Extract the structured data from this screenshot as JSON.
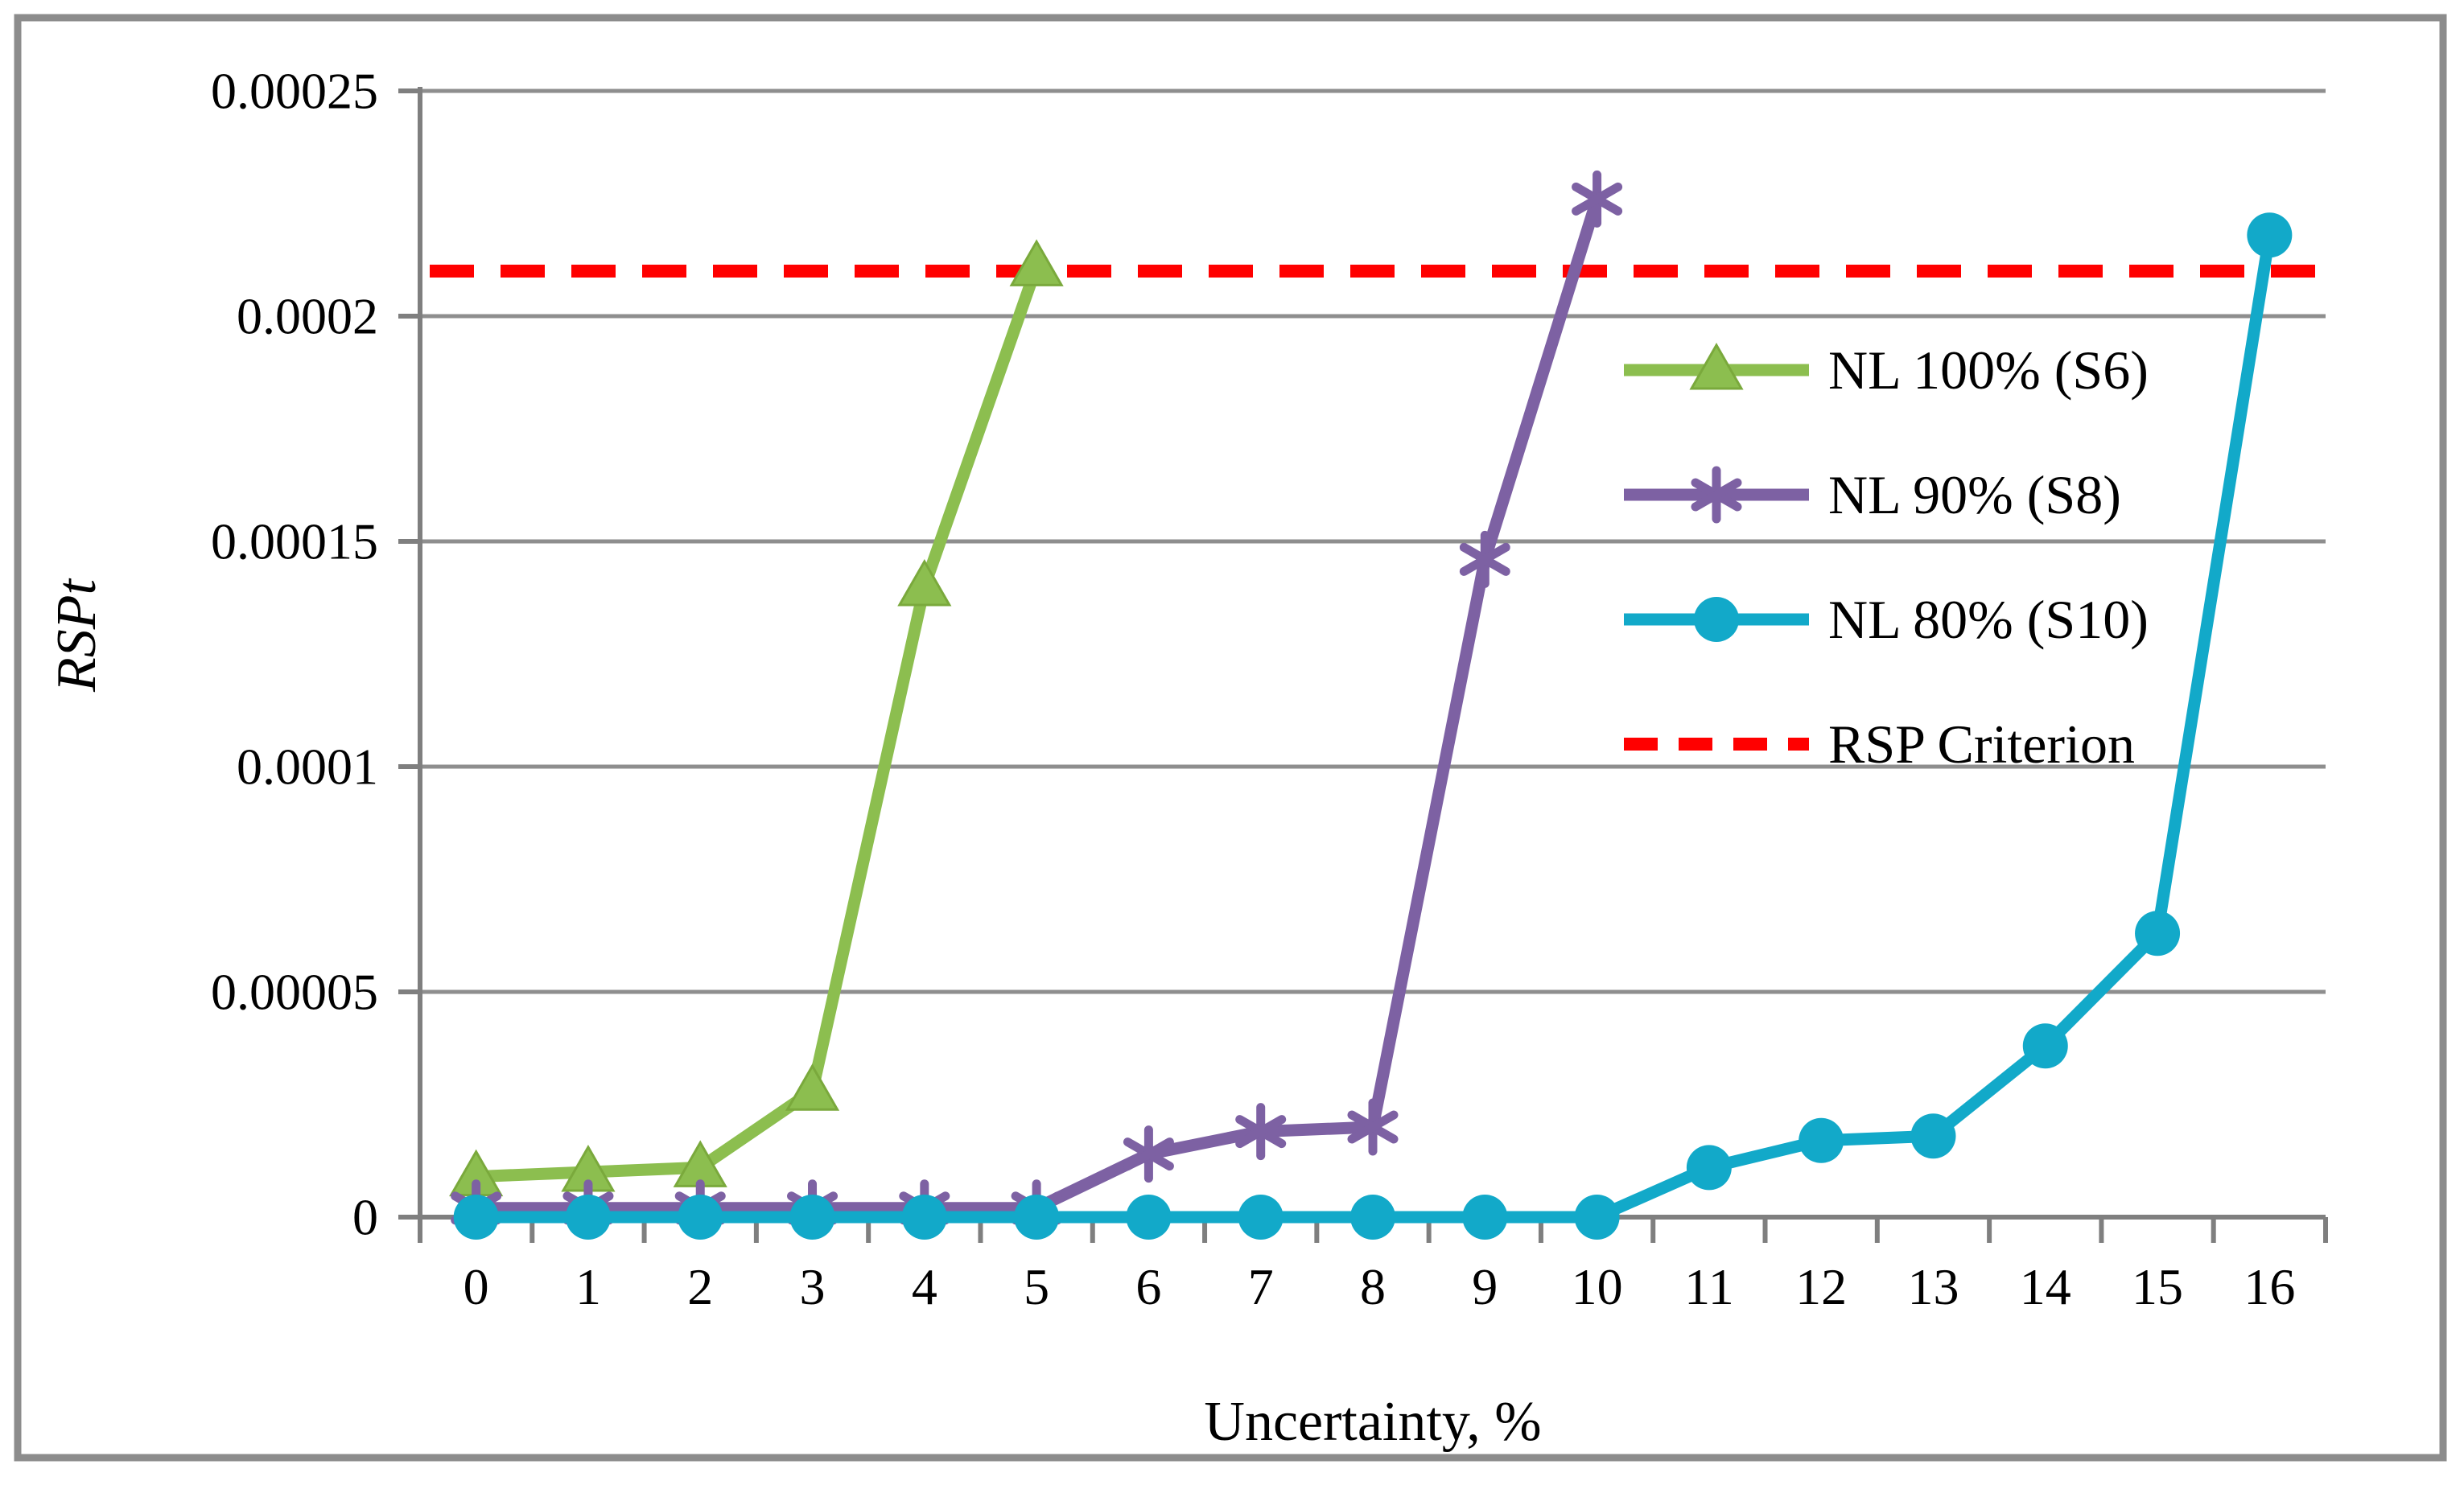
{
  "chart_data": {
    "type": "line",
    "title": "",
    "xlabel": "Uncertainty, %",
    "ylabel": "RSPt",
    "x": [
      0,
      1,
      2,
      3,
      4,
      5,
      6,
      7,
      8,
      9,
      10,
      11,
      12,
      13,
      14,
      15,
      16
    ],
    "xtick_labels": [
      "0",
      "1",
      "2",
      "3",
      "4",
      "5",
      "6",
      "7",
      "8",
      "9",
      "10",
      "11",
      "12",
      "13",
      "14",
      "15",
      "16"
    ],
    "ylim": [
      0,
      0.00025
    ],
    "ytick_step": 5e-05,
    "ytick_labels": [
      "0",
      "0.00005",
      "0.0001",
      "0.00015",
      "0.0002",
      "0.00025"
    ],
    "grid": "horizontal-only",
    "legend_position": "center-right-overlay",
    "series": [
      {
        "name": "NL 100% (S6)",
        "marker": "triangle",
        "color": "#8CBE4F",
        "marker_edge": "#7AA93C",
        "values": [
          9e-06,
          1e-05,
          1.1e-05,
          2.8e-05,
          0.00014,
          0.000211
        ]
      },
      {
        "name": "NL 90% (S8)",
        "marker": "asterisk",
        "color": "#7D61A3",
        "marker_edge": "#7D61A3",
        "values": [
          2e-06,
          2e-06,
          2e-06,
          2e-06,
          2e-06,
          2e-06,
          1.4e-05,
          1.9e-05,
          2e-05,
          0.000146,
          0.000226
        ]
      },
      {
        "name": "NL 80% (S10)",
        "marker": "circle",
        "color": "#12A9C9",
        "marker_edge": "#12A9C9",
        "values": [
          0,
          0,
          0,
          0,
          0,
          0,
          0,
          0,
          0,
          0,
          0,
          1.1e-05,
          1.7e-05,
          1.8e-05,
          3.8e-05,
          6.3e-05,
          0.000218
        ]
      }
    ],
    "criterion": {
      "name": "RSP Criterion",
      "value": 0.00021,
      "color": "#FF0000",
      "style": "dashed"
    },
    "legend": [
      {
        "label": "NL 100% (S6)",
        "swatch": "triangle-line",
        "color": "#8CBE4F"
      },
      {
        "label": "NL 90% (S8)",
        "swatch": "asterisk-line",
        "color": "#7D61A3"
      },
      {
        "label": "NL 80% (S10)",
        "swatch": "circle-line",
        "color": "#12A9C9"
      },
      {
        "label": "RSP Criterion",
        "swatch": "dashed-line",
        "color": "#FF0000"
      }
    ]
  },
  "style_colors": {
    "gridline": "#8E8E8E",
    "axis": "#7F7F7F",
    "figure_border": "#8C8C8C",
    "text": "#000000"
  }
}
